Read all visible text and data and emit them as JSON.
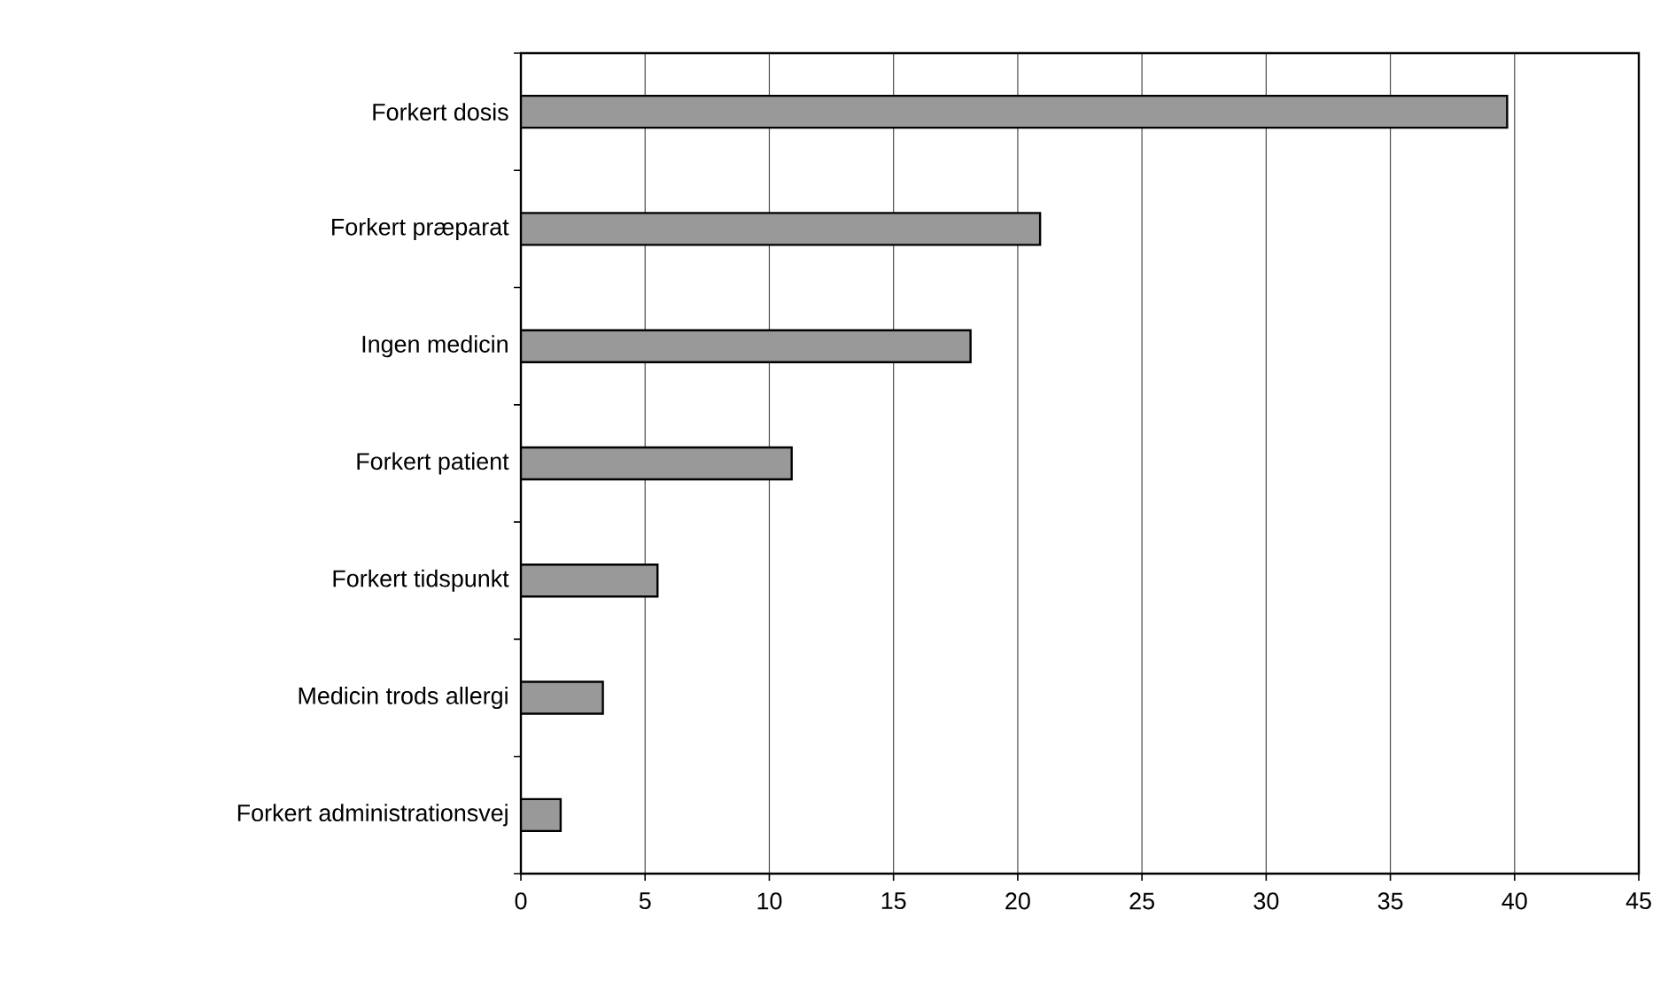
{
  "chart_data": {
    "type": "bar",
    "orientation": "horizontal",
    "categories": [
      "Forkert dosis",
      "Forkert præparat",
      "Ingen medicin",
      "Forkert patient",
      "Forkert tidspunkt",
      "Medicin trods allergi",
      "Forkert administrationsvej"
    ],
    "values": [
      39.7,
      20.9,
      18.1,
      10.9,
      5.5,
      3.3,
      1.6
    ],
    "color": "#999999",
    "xlim": [
      0,
      45
    ],
    "xticks": [
      0,
      5,
      10,
      15,
      20,
      25,
      30,
      35,
      40,
      45
    ],
    "grid": "x"
  }
}
